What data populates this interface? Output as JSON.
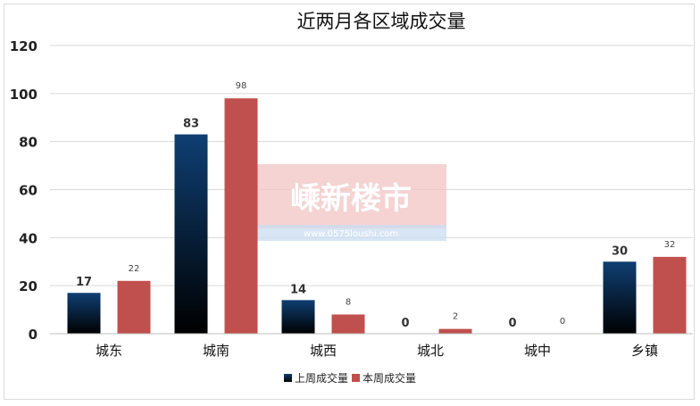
{
  "watermark": {
    "text": "嵊新楼市",
    "url": "www.0575loushi.com"
  },
  "colors": {
    "prev_top": "#0f3f73",
    "prev_bottom": "#000000",
    "current": "#c0504d",
    "grid": "#d9d9d9",
    "watermark_bg": "#f2c4c4",
    "watermark_strip": "#c9dcf0"
  },
  "chart_data": {
    "type": "bar",
    "title": "近两月各区域成交量",
    "categories": [
      "城东",
      "城南",
      "城西",
      "城北",
      "城中",
      "乡镇"
    ],
    "series": [
      {
        "name": "上周成交量",
        "values": [
          17,
          83,
          14,
          0,
          0,
          30
        ]
      },
      {
        "name": "本周成交量",
        "values": [
          22,
          98,
          8,
          2,
          0,
          32
        ]
      }
    ],
    "yticks": [
      0,
      20,
      40,
      60,
      80,
      100,
      120
    ],
    "ylim": [
      0,
      120
    ],
    "grid": true,
    "legend": "bottom",
    "xlabel": "",
    "ylabel": ""
  }
}
